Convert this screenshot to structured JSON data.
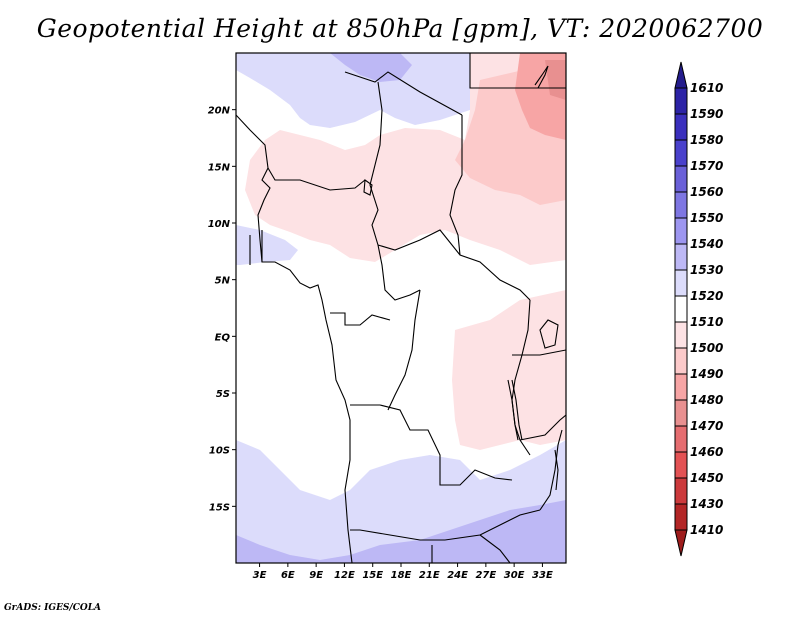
{
  "chart_data": {
    "type": "heatmap",
    "title": "Geopotential Height at 850hPa [gpm], VT: 2020062700",
    "footer": "GrADS: IGES/COLA",
    "xlabel": "",
    "ylabel": "",
    "x_ticks": [
      "3E",
      "6E",
      "9E",
      "12E",
      "15E",
      "18E",
      "21E",
      "24E",
      "27E",
      "30E",
      "33E"
    ],
    "x_tick_values": [
      3,
      6,
      9,
      12,
      15,
      18,
      21,
      24,
      27,
      30,
      33
    ],
    "y_ticks": [
      "20N",
      "15N",
      "10N",
      "5N",
      "EQ",
      "5S",
      "10S",
      "15S"
    ],
    "y_tick_values": [
      20,
      15,
      10,
      5,
      0,
      -5,
      -10,
      -15
    ],
    "xlim": [
      0.5,
      35.5
    ],
    "ylim": [
      -20,
      25
    ],
    "colorbar": {
      "orientation": "vertical",
      "placement": "right",
      "labels": [
        "1610",
        "1590",
        "1580",
        "1570",
        "1560",
        "1550",
        "1540",
        "1530",
        "1520",
        "1510",
        "1500",
        "1490",
        "1480",
        "1470",
        "1460",
        "1450",
        "1430",
        "1410"
      ],
      "colors": [
        "#241c8c",
        "#2c23a6",
        "#3a2fbd",
        "#4a41cc",
        "#6a60d8",
        "#7e76e2",
        "#9d96f0",
        "#bdb8f5",
        "#dcdcfb",
        "#ffffff",
        "#fde2e4",
        "#fccaca",
        "#f7a5a5",
        "#e89090",
        "#e56d70",
        "#e35254",
        "#cc3a3c",
        "#b32626",
        "#9e1c1c"
      ]
    },
    "regions": [
      {
        "name": "sahara-north-blue",
        "level": "1520-1530",
        "color": "#dcdcfb"
      },
      {
        "name": "libya-peak",
        "level": "1530-1540",
        "color": "#bdb8f5"
      },
      {
        "name": "sudan-red",
        "level": "1490-1500",
        "color": "#fccaca"
      },
      {
        "name": "egypt-red",
        "level": "1480-1490",
        "color": "#f7a5a5"
      },
      {
        "name": "sahel-pink",
        "level": "1500-1510",
        "color": "#fde2e4"
      },
      {
        "name": "congo-white",
        "level": "1510-1520",
        "color": "#ffffff"
      },
      {
        "name": "south-atlantic-blue",
        "level": "1520-1530",
        "color": "#dcdcfb"
      },
      {
        "name": "southern-africa-blue",
        "level": "1530-1540",
        "color": "#bdb8f5"
      }
    ]
  }
}
